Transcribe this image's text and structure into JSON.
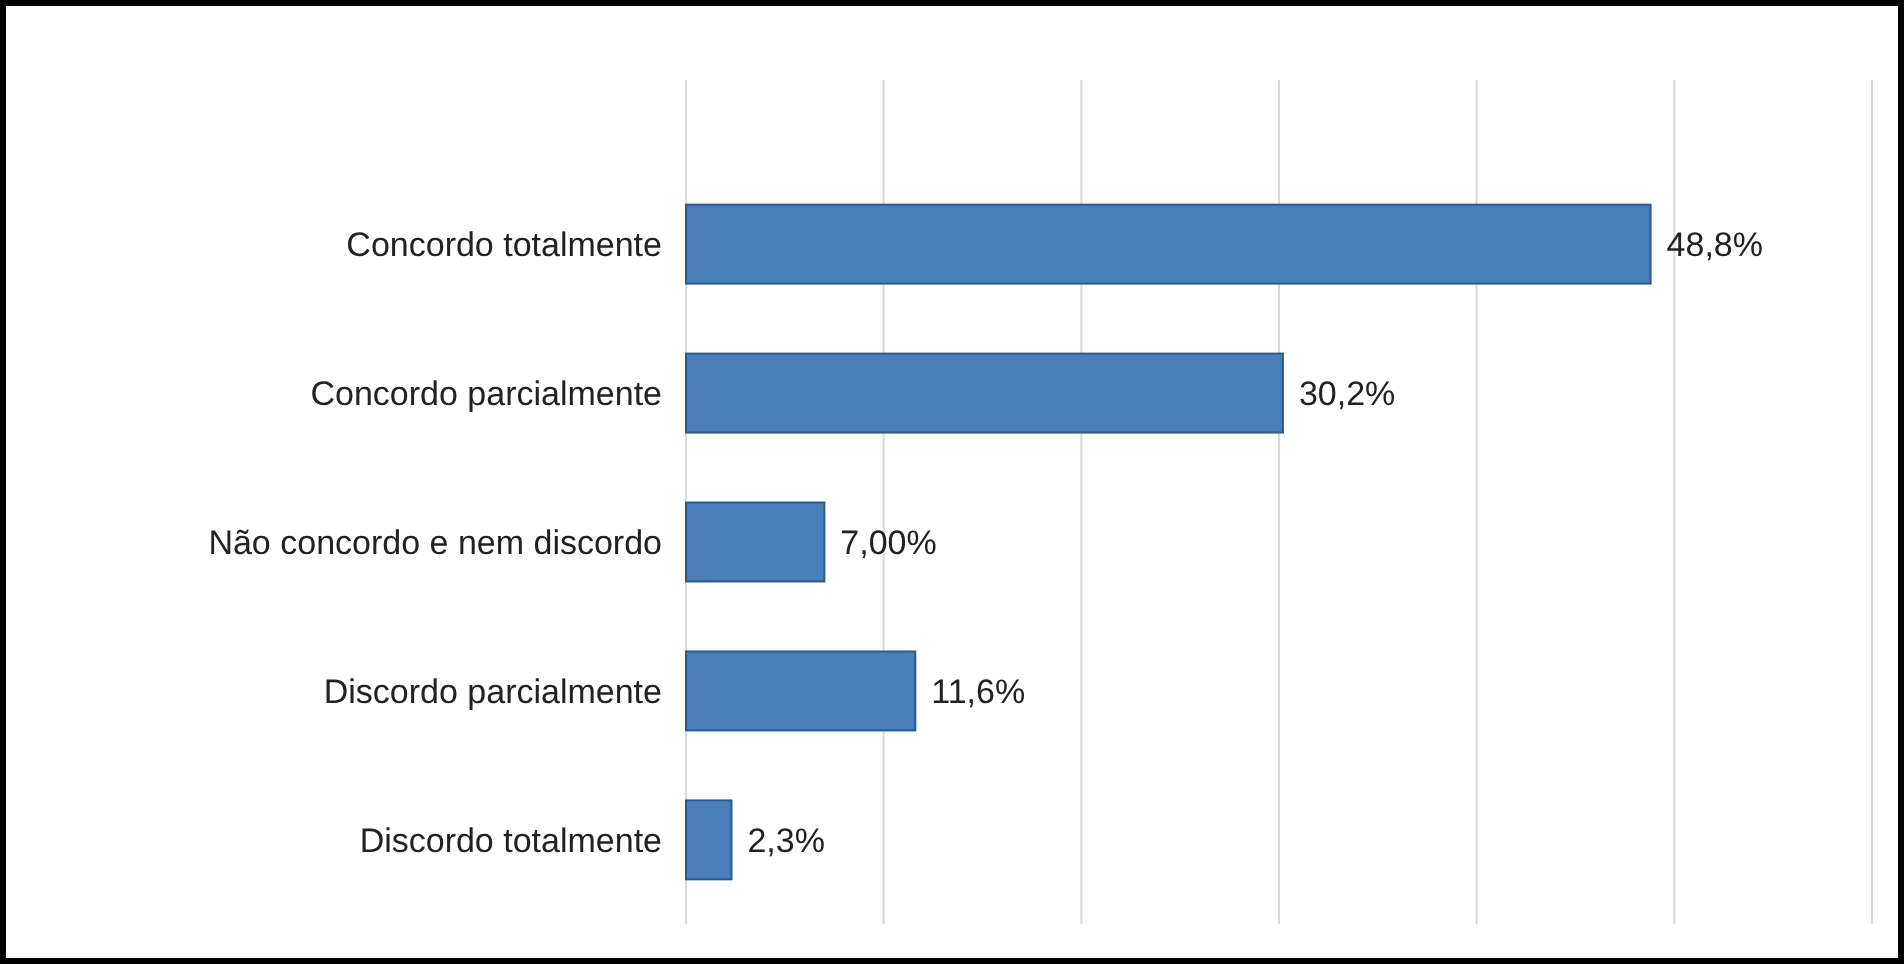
{
  "chart_data": {
    "type": "bar",
    "orientation": "horizontal",
    "categories": [
      "Concordo totalmente",
      "Concordo parcialmente",
      "Não concordo e nem discordo",
      "Discordo parcialmente",
      "Discordo totalmente"
    ],
    "values": [
      48.8,
      30.2,
      7.0,
      11.6,
      2.3
    ],
    "value_labels": [
      "48,8%",
      "30,2%",
      "7,00%",
      "11,6%",
      "2,3%"
    ],
    "color": "#4a7ebb",
    "xlim": [
      0,
      60
    ],
    "xticks": [
      {
        "value": 0,
        "label": null
      },
      {
        "value": 10,
        "label": null
      },
      {
        "value": 20,
        "label": null
      },
      {
        "value": 30,
        "label": null
      },
      {
        "value": 40,
        "label": null
      },
      {
        "value": 50,
        "label": null
      },
      {
        "value": 60,
        "label": null
      }
    ],
    "grid": "x",
    "tick_labels": "y"
  }
}
